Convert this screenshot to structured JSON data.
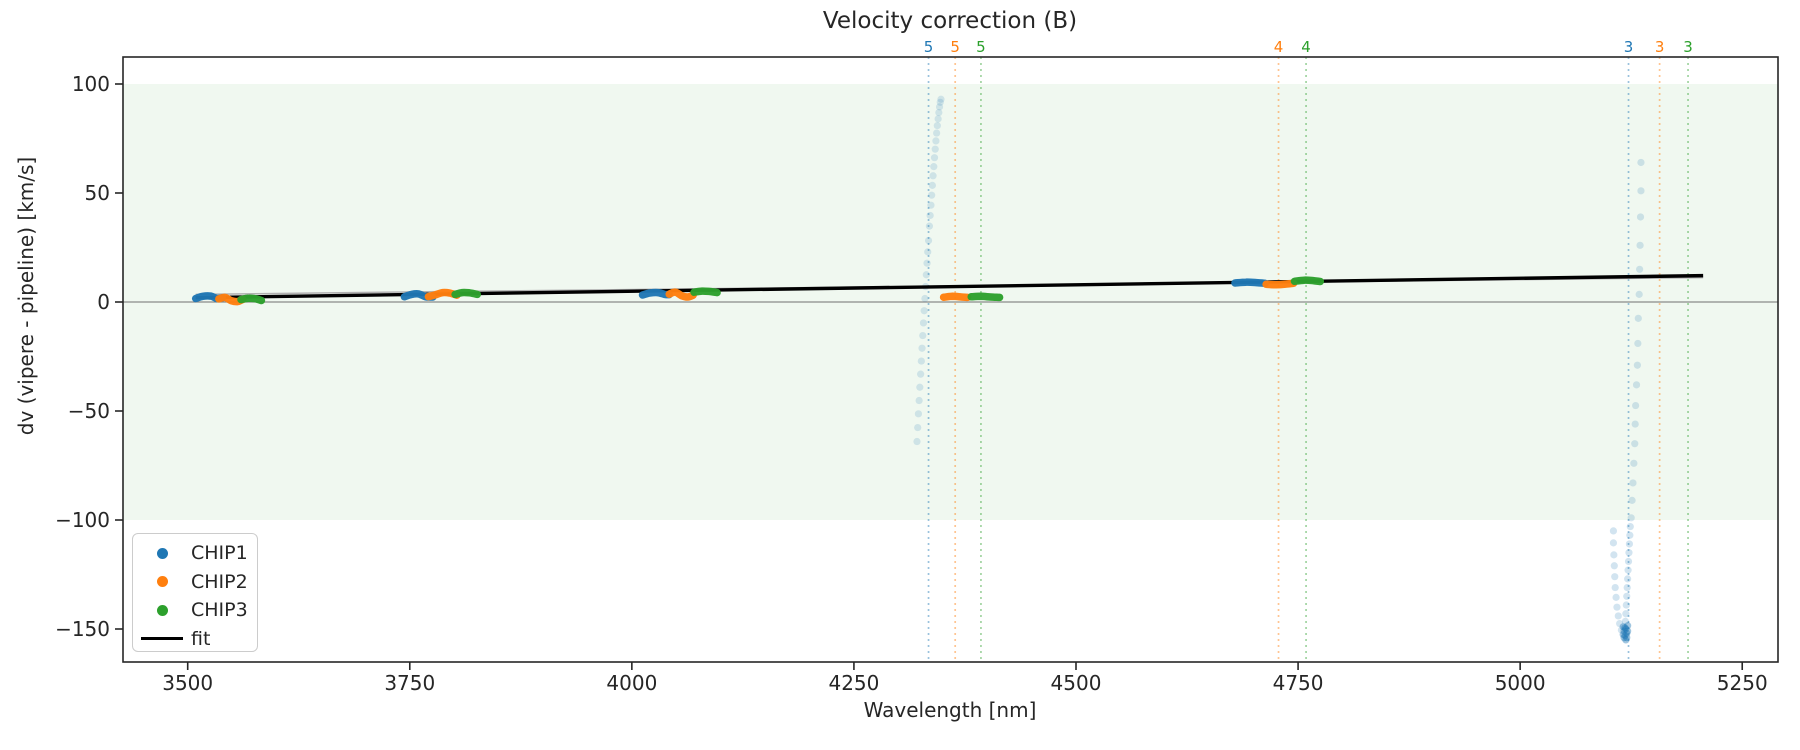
{
  "chart_data": {
    "type": "scatter",
    "title": "Velocity correction (B)",
    "xlabel": "Wavelength [nm]",
    "ylabel": "dv (vipere - pipeline) [km/s]",
    "xlim": [
      3427,
      5290
    ],
    "ylim": [
      -165,
      112
    ],
    "xticks": [
      3500,
      3750,
      4000,
      4250,
      4500,
      4750,
      5000,
      5250
    ],
    "yticks": [
      100,
      50,
      0,
      -50,
      -100,
      -150
    ],
    "ytick_labels": [
      "100",
      "50",
      "0",
      "−50",
      "−100",
      "−150"
    ],
    "shaded_band": {
      "ymin": -100,
      "ymax": 100,
      "color": "#2ca02c",
      "opacity": 0.07
    },
    "zero_line": {
      "y": 0,
      "color": "#8a8a8a"
    },
    "aux_line": {
      "x": [
        3509,
        5206
      ],
      "y": [
        3.5,
        11.2
      ],
      "color": "#b0b0b0"
    },
    "fit_line": {
      "label": "fit",
      "x": [
        3509,
        5206
      ],
      "y": [
        2.0,
        12.1
      ],
      "color": "#000000"
    },
    "order_lines": [
      {
        "order": "5",
        "chip": "CHIP1",
        "color": "#1f77b4",
        "wavelength": 4334
      },
      {
        "order": "5",
        "chip": "CHIP2",
        "color": "#ff7f0e",
        "wavelength": 4364
      },
      {
        "order": "5",
        "chip": "CHIP3",
        "color": "#2ca02c",
        "wavelength": 4393
      },
      {
        "order": "4",
        "chip": "CHIP2",
        "color": "#ff7f0e",
        "wavelength": 4728
      },
      {
        "order": "4",
        "chip": "CHIP3",
        "color": "#2ca02c",
        "wavelength": 4759
      },
      {
        "order": "3",
        "chip": "CHIP1",
        "color": "#1f77b4",
        "wavelength": 5122
      },
      {
        "order": "3",
        "chip": "CHIP2",
        "color": "#ff7f0e",
        "wavelength": 5157
      },
      {
        "order": "3",
        "chip": "CHIP3",
        "color": "#2ca02c",
        "wavelength": 5189
      }
    ],
    "series": [
      {
        "name": "CHIP1",
        "color": "#1f77b4",
        "segments": [
          [
            [
              3509,
              1.6
            ],
            [
              3517,
              2.6
            ],
            [
              3526,
              2.7
            ],
            [
              3533,
              1.6
            ],
            [
              3539,
              1.9
            ]
          ],
          [
            [
              3744,
              2.4
            ],
            [
              3752,
              3.5
            ],
            [
              3760,
              3.7
            ],
            [
              3768,
              2.4
            ],
            [
              3776,
              2.3
            ]
          ],
          [
            [
              4012,
              3.2
            ],
            [
              4020,
              4.1
            ],
            [
              4029,
              4.3
            ],
            [
              4037,
              3.5
            ],
            [
              4042,
              3.4
            ]
          ],
          [
            [
              4679,
              8.7
            ],
            [
              4691,
              9.1
            ],
            [
              4703,
              8.9
            ],
            [
              4713,
              8.6
            ]
          ]
        ]
      },
      {
        "name": "CHIP2",
        "color": "#ff7f0e",
        "segments": [
          [
            [
              3535,
              1.4
            ],
            [
              3542,
              2.1
            ],
            [
              3549,
              0.6
            ],
            [
              3556,
              0.2
            ],
            [
              3562,
              1.2
            ]
          ],
          [
            [
              3771,
              2.5
            ],
            [
              3779,
              3.3
            ],
            [
              3787,
              4.3
            ],
            [
              3795,
              4.1
            ],
            [
              3803,
              3.1
            ]
          ],
          [
            [
              4042,
              3.6
            ],
            [
              4049,
              4.5
            ],
            [
              4056,
              2.9
            ],
            [
              4063,
              2.3
            ],
            [
              4069,
              3.1
            ]
          ],
          [
            [
              4351,
              2.2
            ],
            [
              4361,
              2.6
            ],
            [
              4371,
              2.3
            ],
            [
              4378,
              2.1
            ]
          ],
          [
            [
              4714,
              8.1
            ],
            [
              4725,
              7.9
            ],
            [
              4736,
              8.2
            ],
            [
              4745,
              8.6
            ]
          ]
        ]
      },
      {
        "name": "CHIP3",
        "color": "#2ca02c",
        "segments": [
          [
            [
              3560,
              1.1
            ],
            [
              3568,
              1.7
            ],
            [
              3576,
              1.5
            ],
            [
              3583,
              0.7
            ]
          ],
          [
            [
              3801,
              3.5
            ],
            [
              3809,
              4.3
            ],
            [
              3817,
              4.2
            ],
            [
              3826,
              3.5
            ]
          ],
          [
            [
              4070,
              4.5
            ],
            [
              4079,
              5.0
            ],
            [
              4088,
              4.8
            ],
            [
              4096,
              4.3
            ]
          ],
          [
            [
              4382,
              2.4
            ],
            [
              4393,
              2.6
            ],
            [
              4404,
              2.3
            ],
            [
              4414,
              2.1
            ]
          ],
          [
            [
              4746,
              9.5
            ],
            [
              4757,
              10.0
            ],
            [
              4767,
              9.8
            ],
            [
              4775,
              9.4
            ]
          ]
        ]
      }
    ],
    "outlier_trails": [
      {
        "chip": "CHIP1",
        "color": "#1f77b4",
        "opacity": 0.16,
        "points": [
          [
            4348.0,
            93.0
          ],
          [
            4347.2,
            91.6
          ],
          [
            4346.4,
            89.5
          ],
          [
            4345.6,
            86.9
          ],
          [
            4344.8,
            84.0
          ],
          [
            4343.9,
            80.9
          ],
          [
            4343.1,
            77.5
          ],
          [
            4342.3,
            73.9
          ],
          [
            4341.5,
            70.1
          ],
          [
            4340.7,
            66.2
          ],
          [
            4339.9,
            62.1
          ],
          [
            4339.1,
            57.9
          ],
          [
            4338.3,
            53.5
          ],
          [
            4337.5,
            49.0
          ],
          [
            4336.7,
            44.4
          ],
          [
            4335.8,
            39.7
          ],
          [
            4335.0,
            34.8
          ],
          [
            4334.0,
            28.2
          ],
          [
            4333.1,
            23.0
          ],
          [
            4332.3,
            17.8
          ],
          [
            4331.5,
            12.5
          ],
          [
            4330.7,
            7.1
          ],
          [
            4329.9,
            1.6
          ],
          [
            4329.1,
            -4.0
          ],
          [
            4328.3,
            -9.6
          ],
          [
            4327.5,
            -15.4
          ],
          [
            4326.7,
            -21.2
          ],
          [
            4325.9,
            -27.1
          ],
          [
            4325.1,
            -33.1
          ],
          [
            4324.2,
            -39.1
          ],
          [
            4323.4,
            -45.2
          ],
          [
            4322.6,
            -51.3
          ],
          [
            4321.8,
            -57.6
          ],
          [
            4321.0,
            -64.0
          ]
        ]
      },
      {
        "chip": "CHIP1",
        "color": "#1f77b4",
        "opacity": 0.18,
        "points": [
          [
            5136,
            64
          ],
          [
            5136,
            51
          ],
          [
            5135.5,
            39
          ],
          [
            5135,
            26
          ],
          [
            5134.5,
            15
          ],
          [
            5134,
            3.5
          ],
          [
            5133,
            -7.5
          ],
          [
            5132.5,
            -19
          ],
          [
            5132,
            -29
          ],
          [
            5131,
            -38
          ],
          [
            5130,
            -47.5
          ],
          [
            5129.5,
            -56
          ],
          [
            5129,
            -65
          ],
          [
            5128,
            -74
          ],
          [
            5127,
            -83
          ],
          [
            5126,
            -91
          ],
          [
            5125,
            -99
          ]
        ]
      },
      {
        "chip": "CHIP1",
        "color": "#1f77b4",
        "opacity": 0.2,
        "points": [
          [
            5124,
            -103
          ],
          [
            5123.5,
            -107
          ],
          [
            5123,
            -111
          ],
          [
            5122.5,
            -115
          ],
          [
            5122,
            -119
          ],
          [
            5121.5,
            -123
          ],
          [
            5121,
            -127
          ],
          [
            5120.5,
            -131
          ],
          [
            5120,
            -135
          ],
          [
            5119.5,
            -139
          ],
          [
            5119,
            -143
          ],
          [
            5118.5,
            -146.5
          ],
          [
            5118,
            -149.5
          ]
        ]
      },
      {
        "chip": "CHIP1",
        "color": "#1f77b4",
        "opacity": 0.2,
        "points": [
          [
            5105,
            -105
          ],
          [
            5105,
            -110.5
          ],
          [
            5105.5,
            -116
          ],
          [
            5106,
            -121
          ],
          [
            5106.5,
            -126
          ],
          [
            5107,
            -131
          ],
          [
            5108,
            -135.5
          ],
          [
            5109,
            -140
          ],
          [
            5110.5,
            -144
          ],
          [
            5112,
            -147.5
          ],
          [
            5114,
            -150.5
          ]
        ]
      },
      {
        "chip": "CHIP1",
        "color": "#1f77b4",
        "opacity": 0.42,
        "points": [
          [
            5116,
            -149
          ],
          [
            5117,
            -151
          ],
          [
            5118,
            -153
          ],
          [
            5119,
            -150
          ],
          [
            5120,
            -152
          ],
          [
            5121,
            -148.5
          ],
          [
            5120,
            -154
          ],
          [
            5118,
            -149.5
          ],
          [
            5117,
            -154
          ],
          [
            5119,
            -155
          ],
          [
            5121,
            -151
          ],
          [
            5116,
            -152.5
          ]
        ]
      }
    ],
    "legend": {
      "position": "lower left",
      "items": [
        {
          "label": "CHIP1",
          "marker": "dot",
          "color": "#1f77b4"
        },
        {
          "label": "CHIP2",
          "marker": "dot",
          "color": "#ff7f0e"
        },
        {
          "label": "CHIP3",
          "marker": "dot",
          "color": "#2ca02c"
        },
        {
          "label": "fit",
          "marker": "line",
          "color": "#000000"
        }
      ]
    }
  }
}
